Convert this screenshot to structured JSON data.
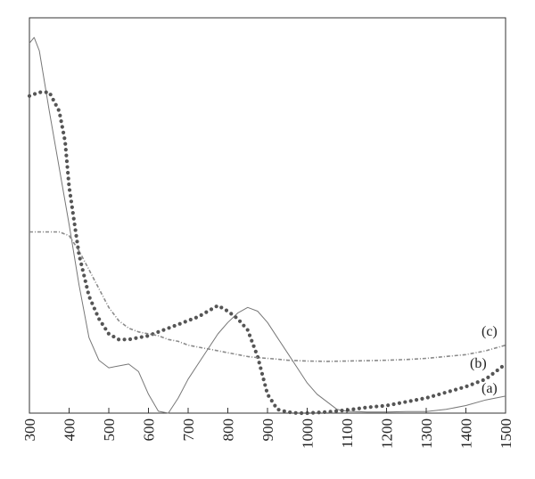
{
  "chart_data": {
    "type": "line",
    "title": "",
    "xlabel": "",
    "ylabel": "",
    "xlim": [
      300,
      1500
    ],
    "ylim": [
      0,
      1
    ],
    "x_ticks": [
      "300",
      "400",
      "500",
      "600",
      "700",
      "800",
      "900",
      "1000",
      "1100",
      "1200",
      "1300",
      "1400",
      "1500"
    ],
    "y_ticks": [],
    "grid": false,
    "series": [
      {
        "name": "(a)",
        "style": "solid",
        "color": "#777777",
        "points": [
          [
            300,
            0.98
          ],
          [
            312,
            0.995
          ],
          [
            325,
            0.96
          ],
          [
            350,
            0.8
          ],
          [
            375,
            0.65
          ],
          [
            400,
            0.5
          ],
          [
            425,
            0.34
          ],
          [
            450,
            0.2
          ],
          [
            475,
            0.14
          ],
          [
            500,
            0.12
          ],
          [
            525,
            0.125
          ],
          [
            550,
            0.13
          ],
          [
            575,
            0.11
          ],
          [
            600,
            0.05
          ],
          [
            625,
            0.005
          ],
          [
            650,
            0.0
          ],
          [
            675,
            0.04
          ],
          [
            700,
            0.09
          ],
          [
            725,
            0.13
          ],
          [
            750,
            0.17
          ],
          [
            775,
            0.21
          ],
          [
            800,
            0.24
          ],
          [
            825,
            0.265
          ],
          [
            850,
            0.28
          ],
          [
            875,
            0.27
          ],
          [
            900,
            0.24
          ],
          [
            925,
            0.2
          ],
          [
            950,
            0.16
          ],
          [
            975,
            0.12
          ],
          [
            1000,
            0.08
          ],
          [
            1025,
            0.05
          ],
          [
            1050,
            0.03
          ],
          [
            1075,
            0.01
          ],
          [
            1100,
            0.005
          ],
          [
            1150,
            0.003
          ],
          [
            1200,
            0.003
          ],
          [
            1250,
            0.004
          ],
          [
            1300,
            0.004
          ],
          [
            1350,
            0.01
          ],
          [
            1400,
            0.02
          ],
          [
            1450,
            0.035
          ],
          [
            1500,
            0.045
          ]
        ]
      },
      {
        "name": "(b)",
        "style": "dotted",
        "color": "#555555",
        "points": [
          [
            300,
            0.84
          ],
          [
            325,
            0.85
          ],
          [
            350,
            0.85
          ],
          [
            375,
            0.8
          ],
          [
            390,
            0.72
          ],
          [
            400,
            0.6
          ],
          [
            425,
            0.42
          ],
          [
            450,
            0.31
          ],
          [
            475,
            0.25
          ],
          [
            500,
            0.21
          ],
          [
            525,
            0.195
          ],
          [
            550,
            0.195
          ],
          [
            575,
            0.2
          ],
          [
            600,
            0.205
          ],
          [
            625,
            0.215
          ],
          [
            650,
            0.225
          ],
          [
            675,
            0.235
          ],
          [
            700,
            0.245
          ],
          [
            725,
            0.255
          ],
          [
            750,
            0.27
          ],
          [
            775,
            0.285
          ],
          [
            800,
            0.27
          ],
          [
            825,
            0.25
          ],
          [
            850,
            0.22
          ],
          [
            875,
            0.15
          ],
          [
            900,
            0.05
          ],
          [
            925,
            0.01
          ],
          [
            950,
            0.003
          ],
          [
            975,
            0.0
          ],
          [
            1000,
            0.0
          ],
          [
            1050,
            0.003
          ],
          [
            1100,
            0.008
          ],
          [
            1150,
            0.015
          ],
          [
            1200,
            0.02
          ],
          [
            1250,
            0.03
          ],
          [
            1300,
            0.04
          ],
          [
            1350,
            0.055
          ],
          [
            1400,
            0.07
          ],
          [
            1450,
            0.09
          ],
          [
            1500,
            0.13
          ]
        ]
      },
      {
        "name": "(c)",
        "style": "dash-dot",
        "color": "#8a8a8a",
        "points": [
          [
            300,
            0.48
          ],
          [
            325,
            0.48
          ],
          [
            350,
            0.48
          ],
          [
            375,
            0.48
          ],
          [
            400,
            0.47
          ],
          [
            425,
            0.43
          ],
          [
            450,
            0.38
          ],
          [
            475,
            0.33
          ],
          [
            500,
            0.28
          ],
          [
            525,
            0.245
          ],
          [
            550,
            0.225
          ],
          [
            575,
            0.215
          ],
          [
            600,
            0.21
          ],
          [
            625,
            0.205
          ],
          [
            650,
            0.195
          ],
          [
            675,
            0.19
          ],
          [
            700,
            0.18
          ],
          [
            725,
            0.175
          ],
          [
            750,
            0.17
          ],
          [
            775,
            0.165
          ],
          [
            800,
            0.16
          ],
          [
            825,
            0.155
          ],
          [
            850,
            0.15
          ],
          [
            875,
            0.147
          ],
          [
            900,
            0.145
          ],
          [
            925,
            0.143
          ],
          [
            950,
            0.14
          ],
          [
            1000,
            0.138
          ],
          [
            1050,
            0.137
          ],
          [
            1100,
            0.138
          ],
          [
            1150,
            0.139
          ],
          [
            1200,
            0.14
          ],
          [
            1250,
            0.142
          ],
          [
            1300,
            0.145
          ],
          [
            1350,
            0.15
          ],
          [
            1400,
            0.155
          ],
          [
            1450,
            0.165
          ],
          [
            1500,
            0.18
          ]
        ]
      }
    ]
  }
}
